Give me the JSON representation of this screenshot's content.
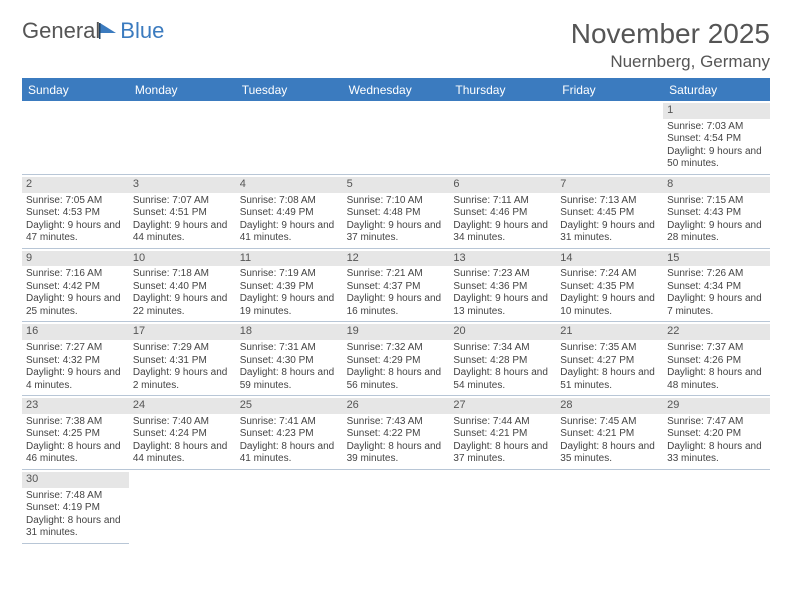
{
  "logo": {
    "text1": "General",
    "text2": "Blue"
  },
  "title": "November 2025",
  "location": "Nuernberg, Germany",
  "colors": {
    "headerBlue": "#3b7bbf",
    "grayBand": "#e6e6e6",
    "ruleBlue": "#b8c6d6",
    "text": "#444"
  },
  "dayHeaders": [
    "Sunday",
    "Monday",
    "Tuesday",
    "Wednesday",
    "Thursday",
    "Friday",
    "Saturday"
  ],
  "weeks": [
    [
      null,
      null,
      null,
      null,
      null,
      null,
      {
        "n": "1",
        "r": "7:03 AM",
        "s": "4:54 PM",
        "d": "9 hours and 50 minutes."
      }
    ],
    [
      {
        "n": "2",
        "r": "7:05 AM",
        "s": "4:53 PM",
        "d": "9 hours and 47 minutes."
      },
      {
        "n": "3",
        "r": "7:07 AM",
        "s": "4:51 PM",
        "d": "9 hours and 44 minutes."
      },
      {
        "n": "4",
        "r": "7:08 AM",
        "s": "4:49 PM",
        "d": "9 hours and 41 minutes."
      },
      {
        "n": "5",
        "r": "7:10 AM",
        "s": "4:48 PM",
        "d": "9 hours and 37 minutes."
      },
      {
        "n": "6",
        "r": "7:11 AM",
        "s": "4:46 PM",
        "d": "9 hours and 34 minutes."
      },
      {
        "n": "7",
        "r": "7:13 AM",
        "s": "4:45 PM",
        "d": "9 hours and 31 minutes."
      },
      {
        "n": "8",
        "r": "7:15 AM",
        "s": "4:43 PM",
        "d": "9 hours and 28 minutes."
      }
    ],
    [
      {
        "n": "9",
        "r": "7:16 AM",
        "s": "4:42 PM",
        "d": "9 hours and 25 minutes."
      },
      {
        "n": "10",
        "r": "7:18 AM",
        "s": "4:40 PM",
        "d": "9 hours and 22 minutes."
      },
      {
        "n": "11",
        "r": "7:19 AM",
        "s": "4:39 PM",
        "d": "9 hours and 19 minutes."
      },
      {
        "n": "12",
        "r": "7:21 AM",
        "s": "4:37 PM",
        "d": "9 hours and 16 minutes."
      },
      {
        "n": "13",
        "r": "7:23 AM",
        "s": "4:36 PM",
        "d": "9 hours and 13 minutes."
      },
      {
        "n": "14",
        "r": "7:24 AM",
        "s": "4:35 PM",
        "d": "9 hours and 10 minutes."
      },
      {
        "n": "15",
        "r": "7:26 AM",
        "s": "4:34 PM",
        "d": "9 hours and 7 minutes."
      }
    ],
    [
      {
        "n": "16",
        "r": "7:27 AM",
        "s": "4:32 PM",
        "d": "9 hours and 4 minutes."
      },
      {
        "n": "17",
        "r": "7:29 AM",
        "s": "4:31 PM",
        "d": "9 hours and 2 minutes."
      },
      {
        "n": "18",
        "r": "7:31 AM",
        "s": "4:30 PM",
        "d": "8 hours and 59 minutes."
      },
      {
        "n": "19",
        "r": "7:32 AM",
        "s": "4:29 PM",
        "d": "8 hours and 56 minutes."
      },
      {
        "n": "20",
        "r": "7:34 AM",
        "s": "4:28 PM",
        "d": "8 hours and 54 minutes."
      },
      {
        "n": "21",
        "r": "7:35 AM",
        "s": "4:27 PM",
        "d": "8 hours and 51 minutes."
      },
      {
        "n": "22",
        "r": "7:37 AM",
        "s": "4:26 PM",
        "d": "8 hours and 48 minutes."
      }
    ],
    [
      {
        "n": "23",
        "r": "7:38 AM",
        "s": "4:25 PM",
        "d": "8 hours and 46 minutes."
      },
      {
        "n": "24",
        "r": "7:40 AM",
        "s": "4:24 PM",
        "d": "8 hours and 44 minutes."
      },
      {
        "n": "25",
        "r": "7:41 AM",
        "s": "4:23 PM",
        "d": "8 hours and 41 minutes."
      },
      {
        "n": "26",
        "r": "7:43 AM",
        "s": "4:22 PM",
        "d": "8 hours and 39 minutes."
      },
      {
        "n": "27",
        "r": "7:44 AM",
        "s": "4:21 PM",
        "d": "8 hours and 37 minutes."
      },
      {
        "n": "28",
        "r": "7:45 AM",
        "s": "4:21 PM",
        "d": "8 hours and 35 minutes."
      },
      {
        "n": "29",
        "r": "7:47 AM",
        "s": "4:20 PM",
        "d": "8 hours and 33 minutes."
      }
    ],
    [
      {
        "n": "30",
        "r": "7:48 AM",
        "s": "4:19 PM",
        "d": "8 hours and 31 minutes."
      },
      null,
      null,
      null,
      null,
      null,
      null
    ]
  ],
  "labels": {
    "sunrise": "Sunrise: ",
    "sunset": "Sunset: ",
    "daylight": "Daylight: "
  }
}
